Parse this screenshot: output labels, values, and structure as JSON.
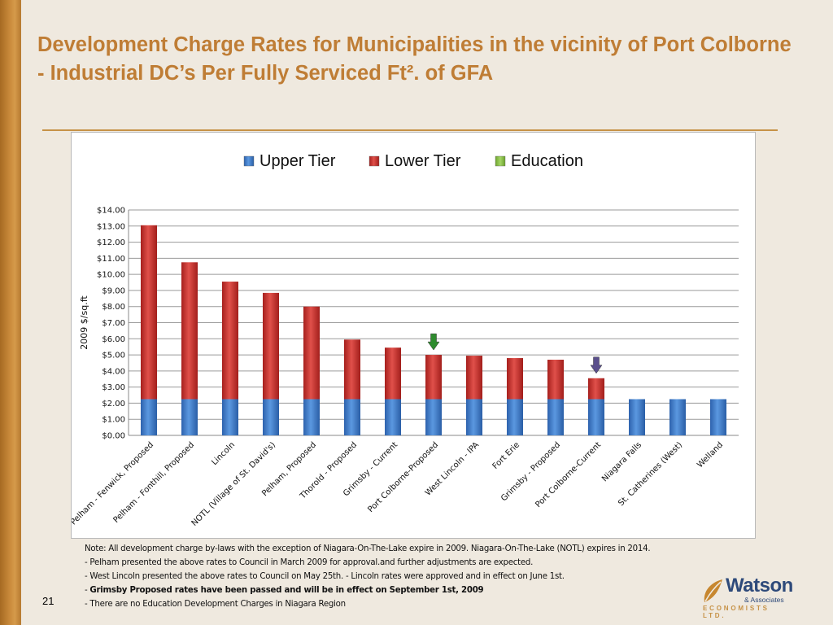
{
  "slide": {
    "title": "Development Charge Rates for Municipalities in the vicinity of Port Colborne -  Industrial DC’s Per Fully Serviced Ft². of GFA",
    "page_number": "21"
  },
  "notes": [
    "Note: All development charge by-laws with the exception of Niagara-On-The-Lake expire in 2009.     Niagara-On-The-Lake (NOTL) expires in 2014.",
    "- Pelham  presented the above rates to Council in March 2009  for approval.and further adjustments are expected.",
    "- West Lincoln   presented the above rates to Council on May 25th.    - Lincoln rates were approved and in effect on June 1st.",
    "Grimsby Proposed rates have been passed and will be in effect on September 1st, 2009",
    "- There are no Education Development Charges in Niagara Region"
  ],
  "notes_bold_prefix": "- ",
  "logo": {
    "name": "Watson",
    "sub": "& Associates",
    "tagline": "ECONOMISTS LTD."
  },
  "colors": {
    "title": "#bf7d35",
    "upper_tier": "#3a78c9",
    "lower_tier": "#c8302c",
    "education": "#8cc443",
    "arrow_green": "#2e8b2e",
    "arrow_purple": "#5a4f8c"
  },
  "chart_data": {
    "type": "bar",
    "stacked": true,
    "ylabel": "2009 $/sq.ft",
    "ylim": [
      0,
      14
    ],
    "yticks": [
      "$0.00",
      "$1.00",
      "$2.00",
      "$3.00",
      "$4.00",
      "$5.00",
      "$6.00",
      "$7.00",
      "$8.00",
      "$9.00",
      "$10.00",
      "$11.00",
      "$12.00",
      "$13.00",
      "$14.00"
    ],
    "grid": true,
    "legend_position": "top",
    "categories": [
      "Pelham - Fenwick, Proposed",
      "Pelham - Fonthill, Proposed",
      "Lincoln",
      "NOTL (Village of St. David's)",
      "Pelham, Proposed",
      "Thorold - Proposed",
      "Grimsby - Current",
      "Port Colborne-Proposed",
      "West Lincoln - IPA",
      "Fort Erie",
      "Grimsby - Proposed",
      "Port Colborne-Current",
      "Niagara Falls",
      "St. Catherines (West)",
      "Welland"
    ],
    "series": [
      {
        "name": "Upper Tier",
        "values": [
          2.25,
          2.25,
          2.25,
          2.25,
          2.25,
          2.25,
          2.25,
          2.25,
          2.25,
          2.25,
          2.25,
          2.25,
          2.25,
          2.25,
          2.25
        ]
      },
      {
        "name": "Lower Tier",
        "values": [
          10.8,
          8.5,
          7.3,
          6.6,
          5.75,
          3.7,
          3.2,
          2.75,
          2.7,
          2.55,
          2.45,
          1.3,
          0,
          0,
          0
        ]
      },
      {
        "name": "Education",
        "values": [
          0,
          0,
          0,
          0,
          0,
          0,
          0,
          0,
          0,
          0,
          0,
          0,
          0,
          0,
          0
        ]
      }
    ],
    "markers": [
      {
        "category": "Port Colborne-Proposed",
        "kind": "down-arrow",
        "color": "green"
      },
      {
        "category": "Port Colborne-Current",
        "kind": "down-arrow",
        "color": "purple"
      }
    ]
  }
}
